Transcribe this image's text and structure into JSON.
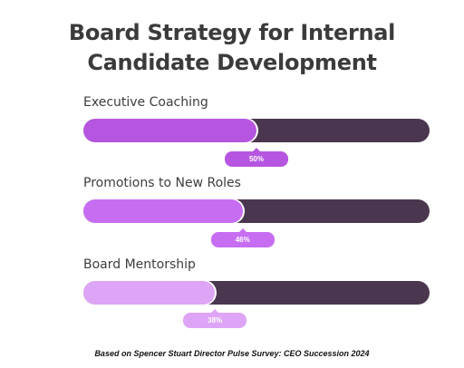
{
  "title_lines": [
    "Board Strategy for Internal",
    "Candidate Development"
  ],
  "footnote": "Based on Spencer Stuart Director Pulse Survey: CEO Succession 2024",
  "colors": {
    "track": "#4b3650",
    "fills": [
      "#b656e0",
      "#c66df2",
      "#dea4f5"
    ]
  },
  "chart_data": {
    "type": "bar",
    "orientation": "horizontal",
    "title": "Board Strategy for Internal Candidate Development",
    "categories": [
      "Executive Coaching",
      "Promotions to New Roles",
      "Board Mentorship"
    ],
    "values": [
      50,
      46,
      38
    ],
    "value_labels": [
      "50%",
      "46%",
      "38%"
    ],
    "xlim": [
      0,
      100
    ],
    "unit": "%",
    "grid": false,
    "legend": "none"
  }
}
